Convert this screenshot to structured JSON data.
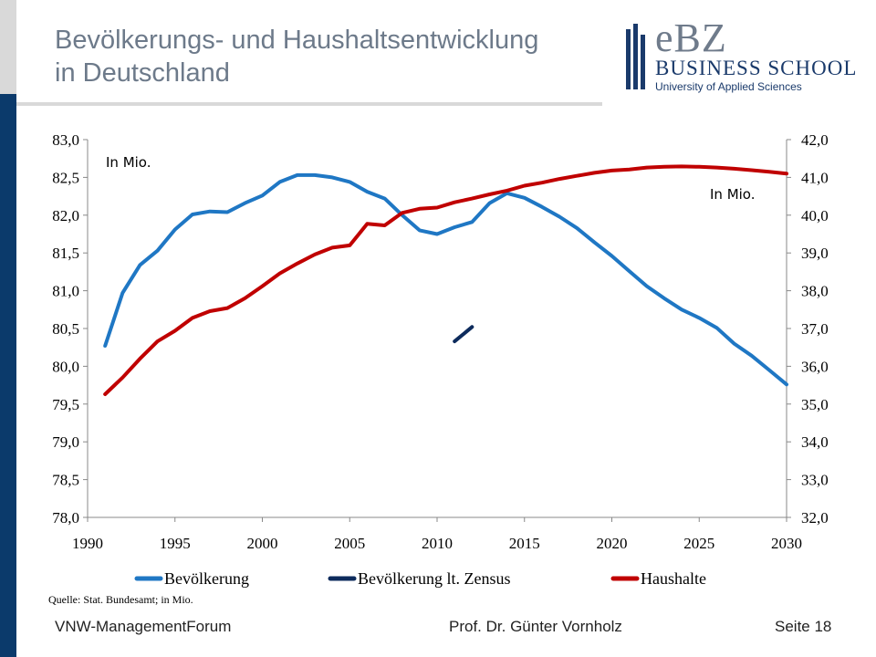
{
  "header": {
    "title_line1": "Bevölkerungs- und Haushaltsentwicklung",
    "title_line2": "in Deutschland"
  },
  "logo": {
    "ebz": "eBZ",
    "business_school": "BUSINESS SCHOOL",
    "university": "University of Applied Sciences"
  },
  "chart_data": {
    "type": "line",
    "unit_label_left": "In Mio.",
    "unit_label_right": "In Mio.",
    "x_ticks": [
      1990,
      1995,
      2000,
      2005,
      2010,
      2015,
      2020,
      2025,
      2030
    ],
    "xlim": [
      1990,
      2030
    ],
    "y_left": {
      "lim": [
        78.0,
        83.0
      ],
      "ticks": [
        "78,0",
        "78,5",
        "79,0",
        "79,5",
        "80,0",
        "80,5",
        "81,0",
        "81,5",
        "82,0",
        "82,5",
        "83,0"
      ]
    },
    "y_right": {
      "lim": [
        32.0,
        42.0
      ],
      "ticks": [
        "32,0",
        "33,0",
        "34,0",
        "35,0",
        "36,0",
        "37,0",
        "38,0",
        "39,0",
        "40,0",
        "41,0",
        "42,0"
      ]
    },
    "grid": false,
    "legend_placement": "bottom",
    "series": [
      {
        "name": "Bevölkerung",
        "axis": "left",
        "color": "#1f77c4",
        "x": [
          1991,
          1992,
          1993,
          1994,
          1995,
          1996,
          1997,
          1998,
          1999,
          2000,
          2001,
          2002,
          2003,
          2004,
          2005,
          2006,
          2007,
          2008,
          2009,
          2010,
          2011,
          2012,
          2013,
          2014,
          2015,
          2016,
          2017,
          2018,
          2019,
          2020,
          2021,
          2022,
          2023,
          2024,
          2025,
          2026,
          2027,
          2028,
          2029,
          2030
        ],
        "y": [
          80.27,
          80.97,
          81.34,
          81.53,
          81.81,
          82.01,
          82.05,
          82.04,
          82.16,
          82.26,
          82.44,
          82.53,
          82.53,
          82.5,
          82.44,
          82.31,
          82.22,
          82.0,
          81.8,
          81.75,
          81.84,
          81.91,
          82.16,
          82.29,
          82.23,
          82.11,
          81.98,
          81.83,
          81.64,
          81.46,
          81.26,
          81.06,
          80.9,
          80.75,
          80.64,
          80.51,
          80.3,
          80.14,
          79.95,
          79.76
        ]
      },
      {
        "name": "Bevölkerung lt. Zensus",
        "axis": "left",
        "color": "#0d2b5c",
        "x": [
          2011,
          2012
        ],
        "y": [
          80.33,
          80.52
        ]
      },
      {
        "name": "Haushalte",
        "axis": "right",
        "color": "#c00000",
        "x": [
          1991,
          1992,
          1993,
          1994,
          1995,
          1996,
          1997,
          1998,
          1999,
          2000,
          2001,
          2002,
          2003,
          2004,
          2005,
          2006,
          2007,
          2008,
          2009,
          2010,
          2011,
          2012,
          2013,
          2014,
          2015,
          2016,
          2017,
          2018,
          2019,
          2020,
          2021,
          2022,
          2023,
          2024,
          2025,
          2026,
          2027,
          2028,
          2029,
          2030
        ],
        "y": [
          35.26,
          35.7,
          36.2,
          36.66,
          36.94,
          37.28,
          37.46,
          37.54,
          37.8,
          38.12,
          38.46,
          38.72,
          38.96,
          39.14,
          39.2,
          39.77,
          39.73,
          40.06,
          40.17,
          40.2,
          40.34,
          40.44,
          40.55,
          40.65,
          40.78,
          40.86,
          40.96,
          41.04,
          41.12,
          41.18,
          41.21,
          41.26,
          41.28,
          41.29,
          41.28,
          41.26,
          41.23,
          41.19,
          41.15,
          41.1
        ]
      }
    ]
  },
  "source": "Quelle: Stat. Bundesamt; in Mio.",
  "footer": {
    "left": "VNW-ManagementForum",
    "middle": "Prof. Dr. Günter Vornholz",
    "right": "Seite 18"
  }
}
